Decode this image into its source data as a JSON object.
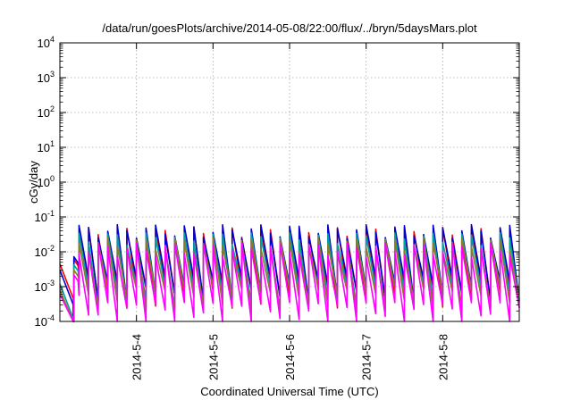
{
  "chart_data": {
    "type": "line",
    "title": "/data/run/goesPlots/archive/2014-05-08/22:00/flux/../bryn/5daysMars.plot",
    "xlabel": "Coordinated Universal Time (UTC)",
    "ylabel": "cGy/day",
    "yscale": "log",
    "ylim": [
      0.0001,
      10000
    ],
    "xlim": [
      "2014-05-03 00:00",
      "2014-05-09 00:00"
    ],
    "grid": true,
    "yticks": [
      {
        "base": "10",
        "exp": "-4"
      },
      {
        "base": "10",
        "exp": "-3"
      },
      {
        "base": "10",
        "exp": "-2"
      },
      {
        "base": "10",
        "exp": "-1"
      },
      {
        "base": "10",
        "exp": "0"
      },
      {
        "base": "10",
        "exp": "1"
      },
      {
        "base": "10",
        "exp": "2"
      },
      {
        "base": "10",
        "exp": "3"
      },
      {
        "base": "10",
        "exp": "4"
      }
    ],
    "xticks": [
      "2014-5-4",
      "2014-5-5",
      "2014-5-6",
      "2014-5-7",
      "2014-5-8"
    ],
    "xtick_values": [
      "2014-05-04 00:00",
      "2014-05-05 00:00",
      "2014-05-06 00:00",
      "2014-05-07 00:00",
      "2014-05-08 00:00"
    ],
    "sawtooth_period_hours": 3,
    "series": [
      {
        "color": "#ff0000",
        "peak": 0.05,
        "floor": 0.0012,
        "start": 0.0045
      },
      {
        "color": "#0000cc",
        "peak": 0.06,
        "floor": 0.0018,
        "start": 0.003
      },
      {
        "color": "#00a0a0",
        "peak": 0.035,
        "floor": 0.0011,
        "start": 0.0012
      },
      {
        "color": "#8a7c2a",
        "peak": 0.025,
        "floor": 0.0009,
        "start": 0.0008
      },
      {
        "color": "#ff00ff",
        "peak": 0.018,
        "floor": 0.00035,
        "start": 0.0006
      }
    ]
  }
}
